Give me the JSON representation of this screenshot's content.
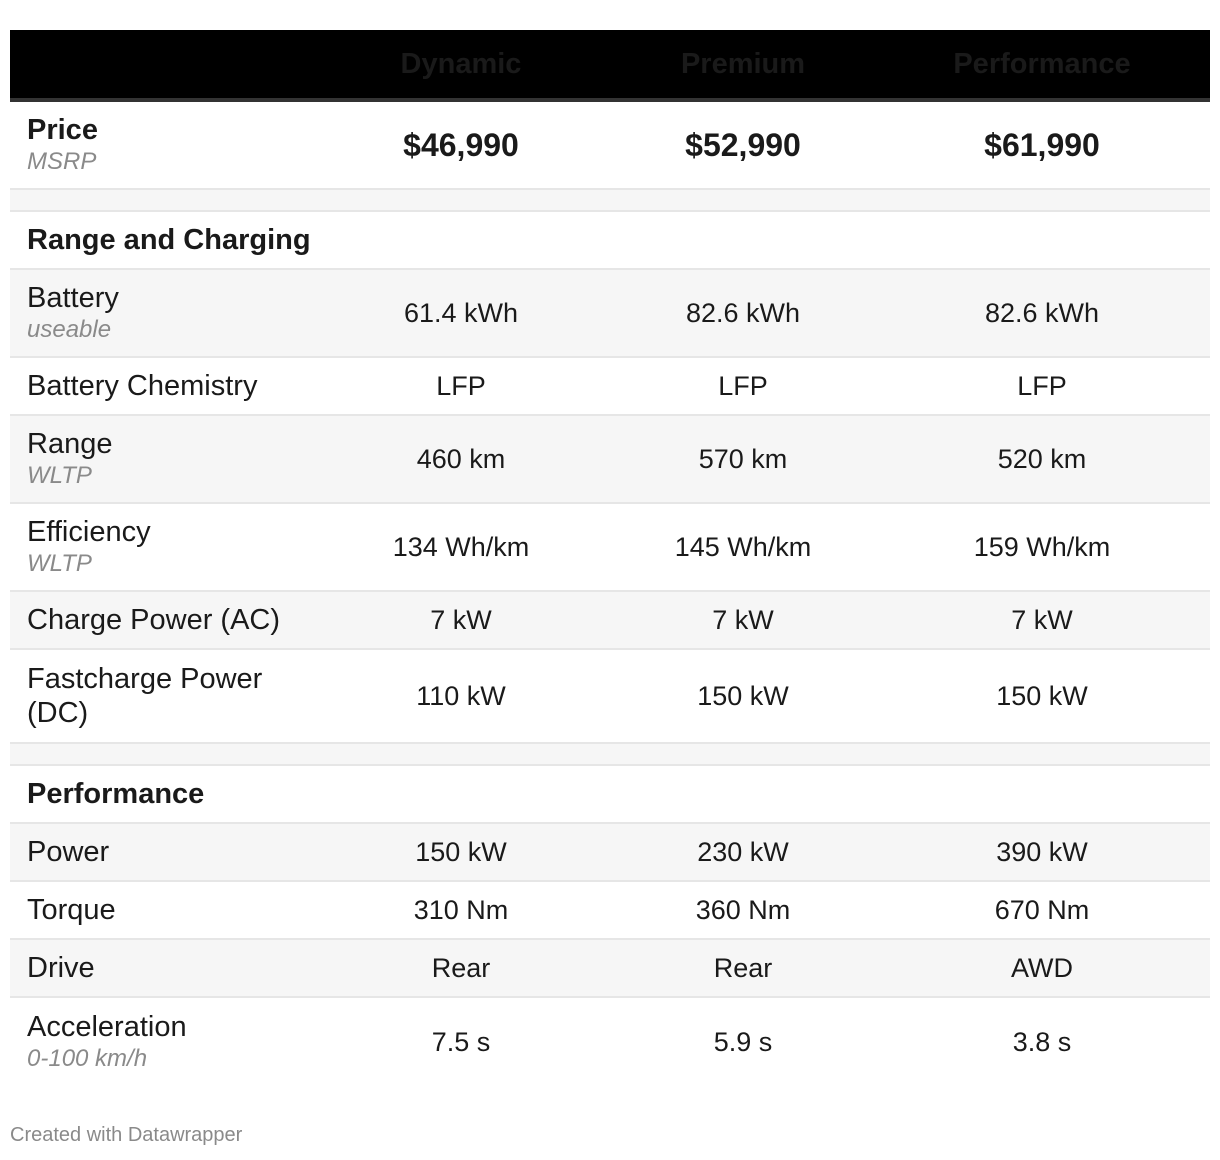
{
  "chart_data": {
    "type": "table",
    "columns": [
      "",
      "Dynamic",
      "Premium",
      "Performance"
    ],
    "price": {
      "label": "Price",
      "sublabel": "MSRP",
      "values": [
        "$46,990",
        "$52,990",
        "$61,990"
      ]
    },
    "sections": [
      {
        "title": "Range and Charging",
        "rows": [
          {
            "label": "Battery",
            "sublabel": "useable",
            "values": [
              "61.4 kWh",
              "82.6 kWh",
              "82.6 kWh"
            ]
          },
          {
            "label": "Battery Chemistry",
            "sublabel": "",
            "values": [
              "LFP",
              "LFP",
              "LFP"
            ]
          },
          {
            "label": "Range",
            "sublabel": "WLTP",
            "values": [
              "460 km",
              "570 km",
              "520 km"
            ]
          },
          {
            "label": "Efficiency",
            "sublabel": "WLTP",
            "values": [
              "134 Wh/km",
              "145 Wh/km",
              "159 Wh/km"
            ]
          },
          {
            "label": "Charge Power (AC)",
            "sublabel": "",
            "values": [
              "7 kW",
              "7 kW",
              "7 kW"
            ]
          },
          {
            "label": "Fastcharge Power (DC)",
            "sublabel": "",
            "values": [
              "110 kW",
              "150 kW",
              "150 kW"
            ]
          }
        ]
      },
      {
        "title": "Performance",
        "rows": [
          {
            "label": "Power",
            "sublabel": "",
            "values": [
              "150 kW",
              "230 kW",
              "390 kW"
            ]
          },
          {
            "label": "Torque",
            "sublabel": "",
            "values": [
              "310 Nm",
              "360 Nm",
              "670 Nm"
            ]
          },
          {
            "label": "Drive",
            "sublabel": "",
            "values": [
              "Rear",
              "Rear",
              "AWD"
            ]
          },
          {
            "label": "Acceleration",
            "sublabel": "0-100 km/h",
            "values": [
              "7.5 s",
              "5.9 s",
              "3.8 s"
            ]
          }
        ]
      }
    ]
  },
  "footer": "Created with Datawrapper",
  "colors": {
    "header_bg": "#000000",
    "header_text": "#ffffff",
    "row_shade": "#f6f6f6",
    "sublabel": "#8a8a8a"
  }
}
